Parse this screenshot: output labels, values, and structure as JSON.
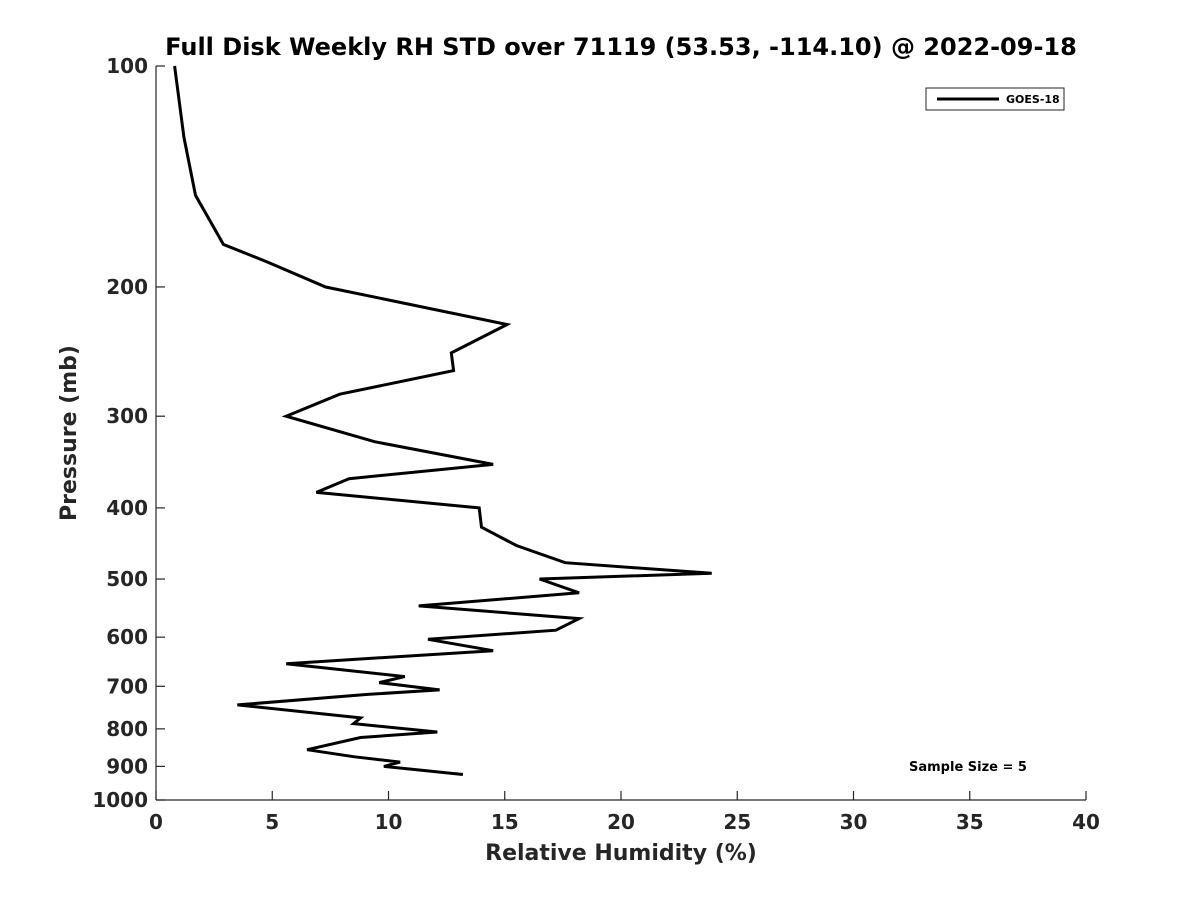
{
  "chart_data": {
    "type": "line",
    "title": "Full Disk Weekly RH STD over 71119 (53.53, -114.10) @ 2022-09-18",
    "xlabel": "Relative Humidity (%)",
    "ylabel": "Pressure (mb)",
    "xlim": [
      0,
      40
    ],
    "ylim": [
      100,
      1000
    ],
    "y_scale": "log",
    "y_reversed": true,
    "grid": false,
    "x_ticks": [
      0,
      5,
      10,
      15,
      20,
      25,
      30,
      35,
      40
    ],
    "x_tick_labels": [
      "0",
      "5",
      "10",
      "15",
      "20",
      "25",
      "30",
      "35",
      "40"
    ],
    "y_ticks": [
      100,
      200,
      300,
      400,
      500,
      600,
      700,
      800,
      900,
      1000
    ],
    "y_tick_labels": [
      "100",
      "200",
      "300",
      "400",
      "500",
      "600",
      "700",
      "800",
      "900",
      "1000"
    ],
    "legend": {
      "position": "top-right",
      "entries": [
        "GOES-18"
      ]
    },
    "annotation": "Sample Size = 5",
    "series": [
      {
        "name": "GOES-18",
        "color": "#000000",
        "points": [
          [
            0.8,
            100
          ],
          [
            1.2,
            125
          ],
          [
            1.7,
            150
          ],
          [
            2.9,
            175
          ],
          [
            4.8,
            185
          ],
          [
            7.3,
            200
          ],
          [
            15.1,
            225
          ],
          [
            12.7,
            246
          ],
          [
            12.8,
            260
          ],
          [
            7.9,
            280
          ],
          [
            5.6,
            300
          ],
          [
            9.4,
            325
          ],
          [
            14.5,
            349
          ],
          [
            8.3,
            365
          ],
          [
            6.9,
            381
          ],
          [
            13.9,
            400
          ],
          [
            14.0,
            425
          ],
          [
            15.5,
            450
          ],
          [
            17.6,
            475
          ],
          [
            23.9,
            491
          ],
          [
            16.5,
            500
          ],
          [
            18.2,
            522
          ],
          [
            11.3,
            544
          ],
          [
            18.2,
            566
          ],
          [
            17.2,
            587
          ],
          [
            11.7,
            604
          ],
          [
            14.5,
            626
          ],
          [
            5.6,
            652
          ],
          [
            10.7,
            679
          ],
          [
            9.6,
            692
          ],
          [
            12.2,
            708
          ],
          [
            9.1,
            718
          ],
          [
            3.5,
            742
          ],
          [
            8.8,
            773
          ],
          [
            8.5,
            787
          ],
          [
            12.1,
            808
          ],
          [
            8.8,
            822
          ],
          [
            6.5,
            854
          ],
          [
            8.5,
            873
          ],
          [
            10.5,
            888
          ],
          [
            9.8,
            900
          ],
          [
            13.2,
            923
          ]
        ]
      }
    ]
  }
}
